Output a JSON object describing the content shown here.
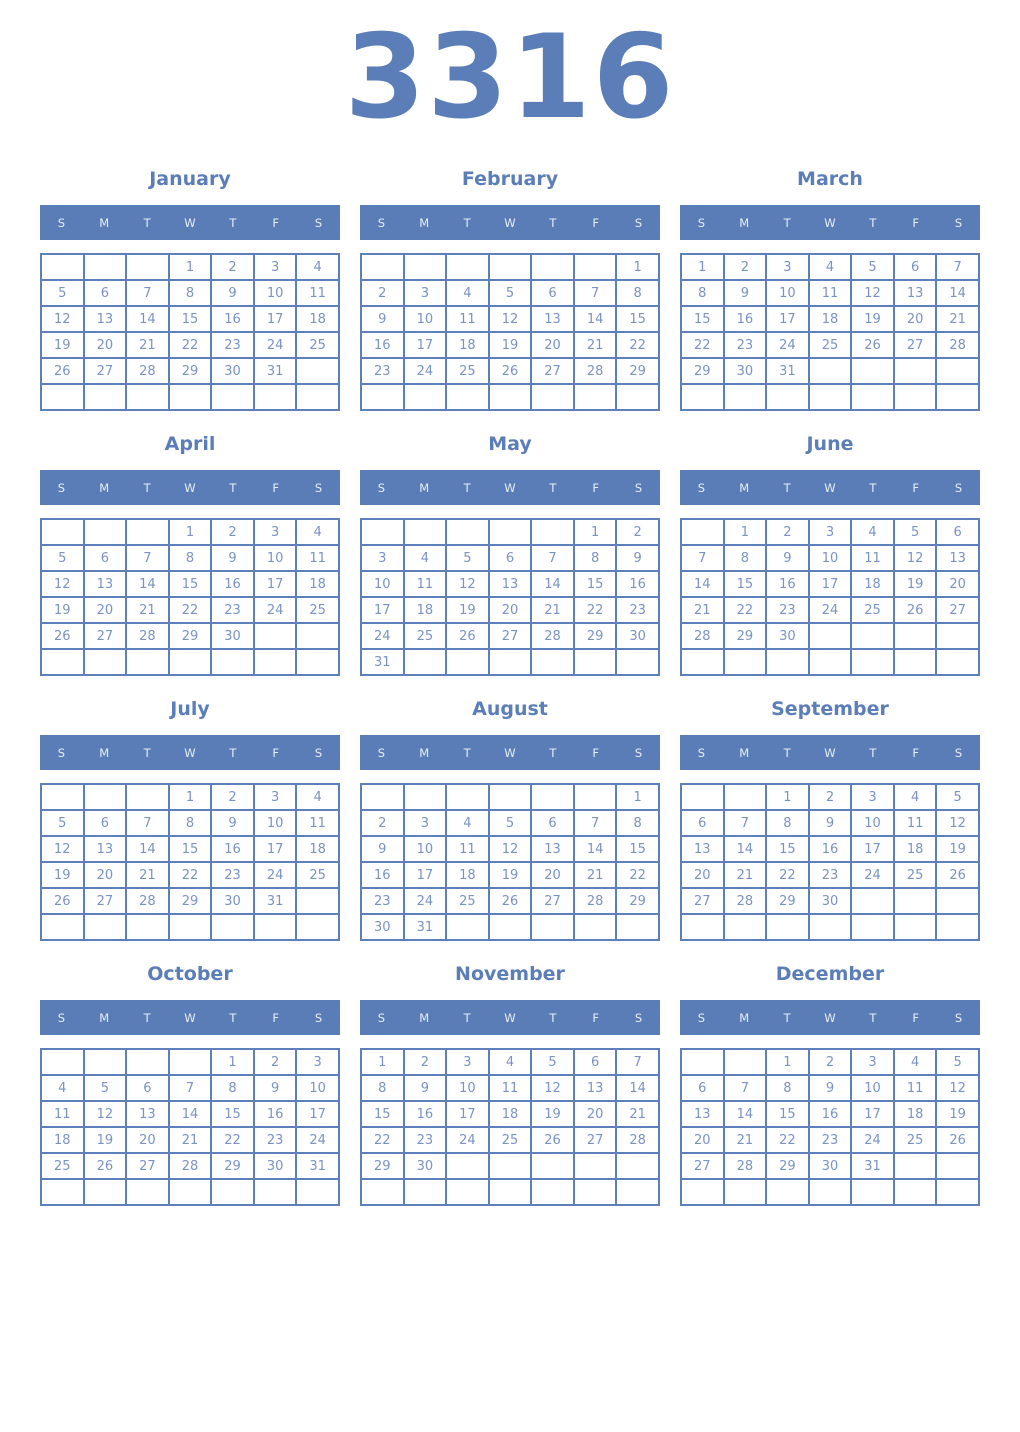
{
  "year": "3316",
  "weekdays": [
    "S",
    "M",
    "T",
    "W",
    "T",
    "F",
    "S"
  ],
  "colors": {
    "accent": "#5b7eb8",
    "header_bg": "#5a7db8",
    "header_text": "#e9eef7",
    "grid_border": "#5d7fba",
    "day_text": "#7b92c4"
  },
  "months": [
    {
      "name": "January",
      "weeks": [
        [
          "",
          "",
          "",
          "1",
          "2",
          "3",
          "4"
        ],
        [
          "5",
          "6",
          "7",
          "8",
          "9",
          "10",
          "11"
        ],
        [
          "12",
          "13",
          "14",
          "15",
          "16",
          "17",
          "18"
        ],
        [
          "19",
          "20",
          "21",
          "22",
          "23",
          "24",
          "25"
        ],
        [
          "26",
          "27",
          "28",
          "29",
          "30",
          "31",
          ""
        ],
        [
          "",
          "",
          "",
          "",
          "",
          "",
          ""
        ]
      ]
    },
    {
      "name": "February",
      "weeks": [
        [
          "",
          "",
          "",
          "",
          "",
          "",
          "1"
        ],
        [
          "2",
          "3",
          "4",
          "5",
          "6",
          "7",
          "8"
        ],
        [
          "9",
          "10",
          "11",
          "12",
          "13",
          "14",
          "15"
        ],
        [
          "16",
          "17",
          "18",
          "19",
          "20",
          "21",
          "22"
        ],
        [
          "23",
          "24",
          "25",
          "26",
          "27",
          "28",
          "29"
        ],
        [
          "",
          "",
          "",
          "",
          "",
          "",
          ""
        ]
      ]
    },
    {
      "name": "March",
      "weeks": [
        [
          "1",
          "2",
          "3",
          "4",
          "5",
          "6",
          "7"
        ],
        [
          "8",
          "9",
          "10",
          "11",
          "12",
          "13",
          "14"
        ],
        [
          "15",
          "16",
          "17",
          "18",
          "19",
          "20",
          "21"
        ],
        [
          "22",
          "23",
          "24",
          "25",
          "26",
          "27",
          "28"
        ],
        [
          "29",
          "30",
          "31",
          "",
          "",
          "",
          ""
        ],
        [
          "",
          "",
          "",
          "",
          "",
          "",
          ""
        ]
      ]
    },
    {
      "name": "April",
      "weeks": [
        [
          "",
          "",
          "",
          "1",
          "2",
          "3",
          "4"
        ],
        [
          "5",
          "6",
          "7",
          "8",
          "9",
          "10",
          "11"
        ],
        [
          "12",
          "13",
          "14",
          "15",
          "16",
          "17",
          "18"
        ],
        [
          "19",
          "20",
          "21",
          "22",
          "23",
          "24",
          "25"
        ],
        [
          "26",
          "27",
          "28",
          "29",
          "30",
          "",
          ""
        ],
        [
          "",
          "",
          "",
          "",
          "",
          "",
          ""
        ]
      ]
    },
    {
      "name": "May",
      "weeks": [
        [
          "",
          "",
          "",
          "",
          "",
          "1",
          "2"
        ],
        [
          "3",
          "4",
          "5",
          "6",
          "7",
          "8",
          "9"
        ],
        [
          "10",
          "11",
          "12",
          "13",
          "14",
          "15",
          "16"
        ],
        [
          "17",
          "18",
          "19",
          "20",
          "21",
          "22",
          "23"
        ],
        [
          "24",
          "25",
          "26",
          "27",
          "28",
          "29",
          "30"
        ],
        [
          "31",
          "",
          "",
          "",
          "",
          "",
          ""
        ]
      ]
    },
    {
      "name": "June",
      "weeks": [
        [
          "",
          "1",
          "2",
          "3",
          "4",
          "5",
          "6"
        ],
        [
          "7",
          "8",
          "9",
          "10",
          "11",
          "12",
          "13"
        ],
        [
          "14",
          "15",
          "16",
          "17",
          "18",
          "19",
          "20"
        ],
        [
          "21",
          "22",
          "23",
          "24",
          "25",
          "26",
          "27"
        ],
        [
          "28",
          "29",
          "30",
          "",
          "",
          "",
          ""
        ],
        [
          "",
          "",
          "",
          "",
          "",
          "",
          ""
        ]
      ]
    },
    {
      "name": "July",
      "weeks": [
        [
          "",
          "",
          "",
          "1",
          "2",
          "3",
          "4"
        ],
        [
          "5",
          "6",
          "7",
          "8",
          "9",
          "10",
          "11"
        ],
        [
          "12",
          "13",
          "14",
          "15",
          "16",
          "17",
          "18"
        ],
        [
          "19",
          "20",
          "21",
          "22",
          "23",
          "24",
          "25"
        ],
        [
          "26",
          "27",
          "28",
          "29",
          "30",
          "31",
          ""
        ],
        [
          "",
          "",
          "",
          "",
          "",
          "",
          ""
        ]
      ]
    },
    {
      "name": "August",
      "weeks": [
        [
          "",
          "",
          "",
          "",
          "",
          "",
          "1"
        ],
        [
          "2",
          "3",
          "4",
          "5",
          "6",
          "7",
          "8"
        ],
        [
          "9",
          "10",
          "11",
          "12",
          "13",
          "14",
          "15"
        ],
        [
          "16",
          "17",
          "18",
          "19",
          "20",
          "21",
          "22"
        ],
        [
          "23",
          "24",
          "25",
          "26",
          "27",
          "28",
          "29"
        ],
        [
          "30",
          "31",
          "",
          "",
          "",
          "",
          ""
        ]
      ]
    },
    {
      "name": "September",
      "weeks": [
        [
          "",
          "",
          "1",
          "2",
          "3",
          "4",
          "5"
        ],
        [
          "6",
          "7",
          "8",
          "9",
          "10",
          "11",
          "12"
        ],
        [
          "13",
          "14",
          "15",
          "16",
          "17",
          "18",
          "19"
        ],
        [
          "20",
          "21",
          "22",
          "23",
          "24",
          "25",
          "26"
        ],
        [
          "27",
          "28",
          "29",
          "30",
          "",
          "",
          ""
        ],
        [
          "",
          "",
          "",
          "",
          "",
          "",
          ""
        ]
      ]
    },
    {
      "name": "October",
      "weeks": [
        [
          "",
          "",
          "",
          "",
          "1",
          "2",
          "3"
        ],
        [
          "4",
          "5",
          "6",
          "7",
          "8",
          "9",
          "10"
        ],
        [
          "11",
          "12",
          "13",
          "14",
          "15",
          "16",
          "17"
        ],
        [
          "18",
          "19",
          "20",
          "21",
          "22",
          "23",
          "24"
        ],
        [
          "25",
          "26",
          "27",
          "28",
          "29",
          "30",
          "31"
        ],
        [
          "",
          "",
          "",
          "",
          "",
          "",
          ""
        ]
      ]
    },
    {
      "name": "November",
      "weeks": [
        [
          "1",
          "2",
          "3",
          "4",
          "5",
          "6",
          "7"
        ],
        [
          "8",
          "9",
          "10",
          "11",
          "12",
          "13",
          "14"
        ],
        [
          "15",
          "16",
          "17",
          "18",
          "19",
          "20",
          "21"
        ],
        [
          "22",
          "23",
          "24",
          "25",
          "26",
          "27",
          "28"
        ],
        [
          "29",
          "30",
          "",
          "",
          "",
          "",
          ""
        ],
        [
          "",
          "",
          "",
          "",
          "",
          "",
          ""
        ]
      ]
    },
    {
      "name": "December",
      "weeks": [
        [
          "",
          "",
          "1",
          "2",
          "3",
          "4",
          "5"
        ],
        [
          "6",
          "7",
          "8",
          "9",
          "10",
          "11",
          "12"
        ],
        [
          "13",
          "14",
          "15",
          "16",
          "17",
          "18",
          "19"
        ],
        [
          "20",
          "21",
          "22",
          "23",
          "24",
          "25",
          "26"
        ],
        [
          "27",
          "28",
          "29",
          "30",
          "31",
          "",
          ""
        ],
        [
          "",
          "",
          "",
          "",
          "",
          "",
          ""
        ]
      ]
    }
  ]
}
